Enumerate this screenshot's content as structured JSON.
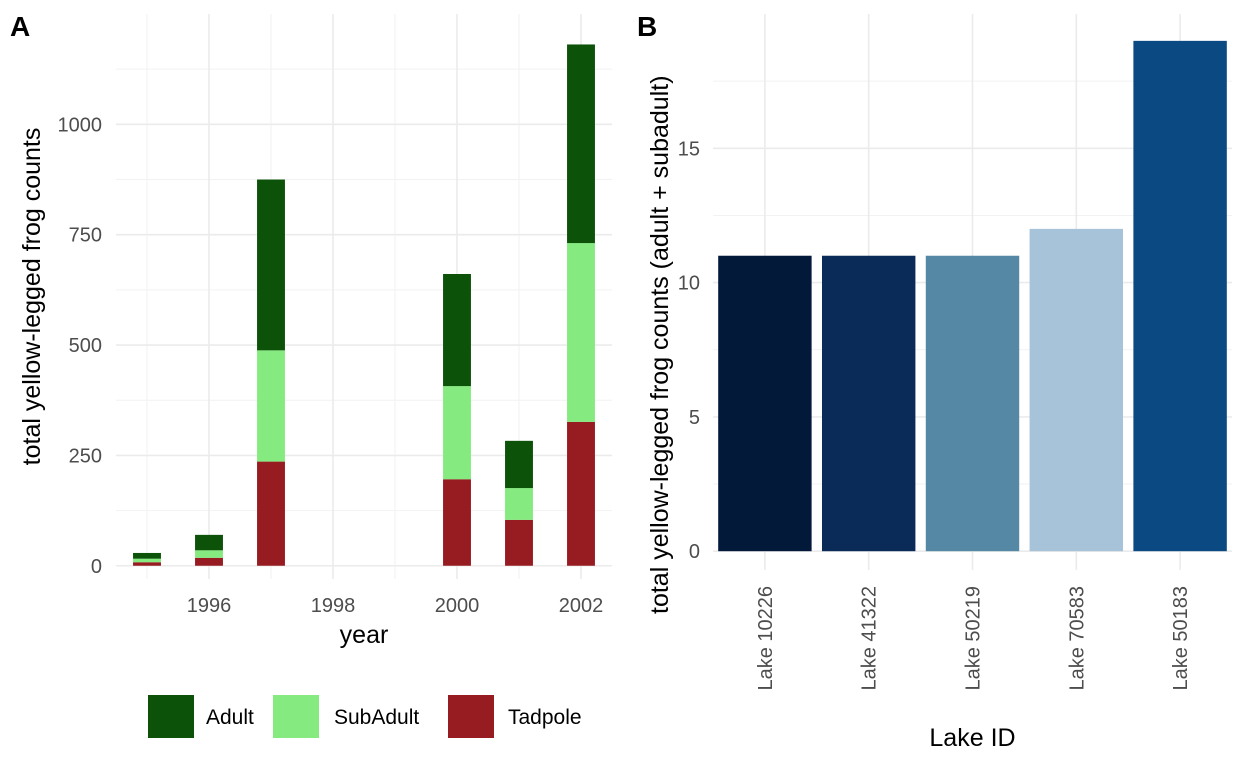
{
  "chart_data": [
    {
      "type": "bar",
      "stacked": true,
      "tag": "A",
      "xlabel": "year",
      "ylabel": "total yellow-legged frog counts",
      "x": [
        1995,
        1996,
        1997,
        2000,
        2001,
        2002
      ],
      "xlim": [
        1994.5,
        2002.5
      ],
      "xticks": [
        1996,
        1998,
        2000,
        2002
      ],
      "xtick_labels": [
        "1996",
        "1998",
        "2000",
        "2002"
      ],
      "ylim": [
        -30,
        1250
      ],
      "yticks": [
        0,
        250,
        500,
        750,
        1000
      ],
      "ytick_labels": [
        "0",
        "250",
        "500",
        "750",
        "1000"
      ],
      "series": [
        {
          "name": "Tadpole",
          "color": "#961C22",
          "values": [
            8,
            18,
            236,
            196,
            104,
            326
          ]
        },
        {
          "name": "SubAdult",
          "color": "#85EB80",
          "values": [
            8,
            17,
            252,
            211,
            72,
            405
          ]
        },
        {
          "name": "Adult",
          "color": "#0C5209",
          "values": [
            13,
            35,
            387,
            254,
            107,
            450
          ]
        }
      ],
      "legend": {
        "position": "bottom",
        "items": [
          {
            "label": "Adult",
            "color": "#0C5209"
          },
          {
            "label": "SubAdult",
            "color": "#85EB80"
          },
          {
            "label": "Tadpole",
            "color": "#961C22"
          }
        ]
      },
      "grid": true
    },
    {
      "type": "bar",
      "tag": "B",
      "xlabel": "Lake ID",
      "ylabel": "total yellow-legged frog counts (adult + subadult)",
      "categories": [
        "Lake 10226",
        "Lake 41322",
        "Lake 50219",
        "Lake 70583",
        "Lake 50183"
      ],
      "values": [
        11,
        11,
        11,
        12,
        19
      ],
      "colors": [
        "#03193A",
        "#0A2A57",
        "#5488A5",
        "#A7C3D9",
        "#0B4983"
      ],
      "ylim": [
        -0.7,
        20
      ],
      "yticks": [
        0,
        5,
        10,
        15
      ],
      "ytick_labels": [
        "0",
        "5",
        "10",
        "15"
      ],
      "grid": true
    }
  ]
}
